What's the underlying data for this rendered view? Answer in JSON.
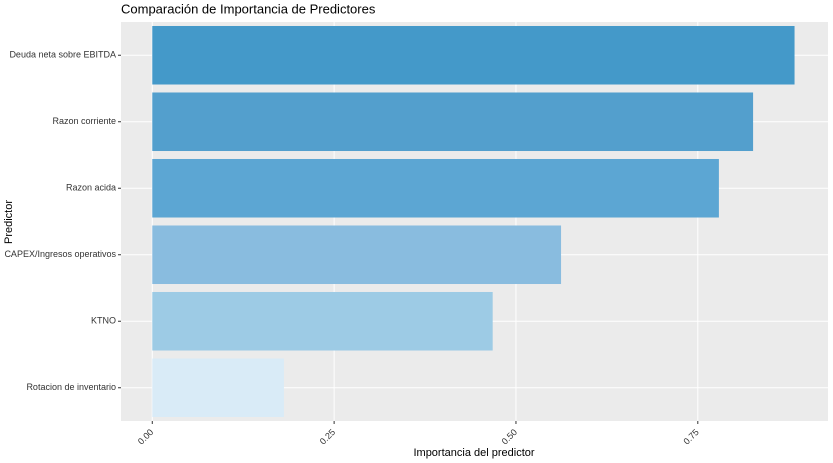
{
  "chart_data": {
    "type": "barh",
    "title": "Comparación de Importancia de Predictores",
    "xlabel": "Importancia del predictor",
    "ylabel": "Predictor",
    "categories": [
      "Deuda neta sobre EBITDA",
      "Razon corriente",
      "Razon acida",
      "CAPEX/Ingresos operativos",
      "KTNO",
      "Rotacion de inventario"
    ],
    "values": [
      0.883,
      0.826,
      0.779,
      0.562,
      0.468,
      0.181
    ],
    "colors": [
      "#4499c9",
      "#539fcd",
      "#5ca6d3",
      "#89bcdf",
      "#9dcbe5",
      "#d9ebf7"
    ],
    "xlim": [
      -0.043,
      0.929
    ],
    "xticks": [
      {
        "value": 0,
        "label": "0.00"
      },
      0.25,
      {
        "value": 0.5,
        "label": "0.50"
      },
      0.75
    ],
    "grid": true
  }
}
